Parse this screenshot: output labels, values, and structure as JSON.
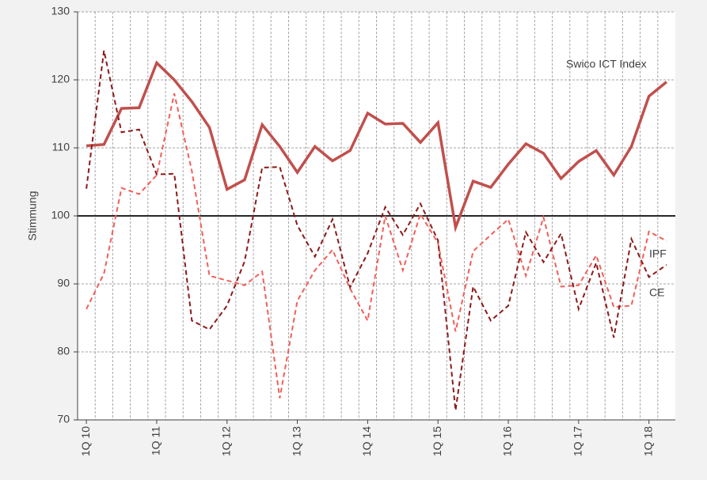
{
  "chart_data": {
    "type": "line",
    "y_label": "Stimmung",
    "categories": [
      "1Q 10",
      null,
      null,
      null,
      "1Q 11",
      null,
      null,
      null,
      "1Q 12",
      null,
      null,
      null,
      "1Q 13",
      null,
      null,
      null,
      "1Q 14",
      null,
      null,
      null,
      "1Q 15",
      null,
      null,
      null,
      "1Q 16",
      null,
      null,
      null,
      "1Q 17",
      null,
      null,
      null,
      "1Q 18",
      null
    ],
    "series": [
      {
        "name": "Swico ICT Index",
        "color": "#c0504d",
        "dash": "solid",
        "values": [
          110.3,
          110.5,
          115.8,
          115.9,
          122.5,
          120.0,
          116.8,
          113.0,
          103.9,
          105.3,
          113.4,
          110.2,
          106.4,
          110.2,
          108.1,
          109.6,
          115.1,
          113.5,
          113.6,
          110.8,
          113.7,
          98.3,
          105.1,
          104.2,
          107.6,
          110.6,
          109.2,
          105.5,
          108.0,
          109.6,
          106.0,
          110.2,
          117.6,
          119.7
        ]
      },
      {
        "name": "IPF",
        "color": "#f0605a",
        "dash": "dashed",
        "values": [
          86.3,
          91.5,
          104.1,
          103.2,
          106.0,
          118.0,
          106.6,
          91.2,
          90.5,
          89.8,
          91.8,
          73.2,
          87.5,
          92.0,
          95.0,
          89.3,
          84.6,
          100.0,
          92.0,
          100.3,
          96.0,
          83.0,
          94.8,
          97.2,
          99.5,
          91.2,
          99.8,
          89.6,
          89.8,
          94.2,
          86.6,
          86.8,
          97.7,
          96.3
        ]
      },
      {
        "name": "CE",
        "color": "#8b1a1a",
        "dash": "dashed",
        "values": [
          104.0,
          124.3,
          112.3,
          112.7,
          106.1,
          106.2,
          84.6,
          83.3,
          86.8,
          93.3,
          107.1,
          107.2,
          98.6,
          94.0,
          99.5,
          89.5,
          94.5,
          101.3,
          97.2,
          101.8,
          96.4,
          71.4,
          89.6,
          84.6,
          86.8,
          97.6,
          93.2,
          97.4,
          86.3,
          93.1,
          82.1,
          96.6,
          91.0,
          92.8
        ]
      }
    ],
    "ylim": [
      70,
      130
    ],
    "yticks": [
      70,
      80,
      90,
      100,
      110,
      120,
      130
    ],
    "reference_line": 100,
    "grid": true
  }
}
